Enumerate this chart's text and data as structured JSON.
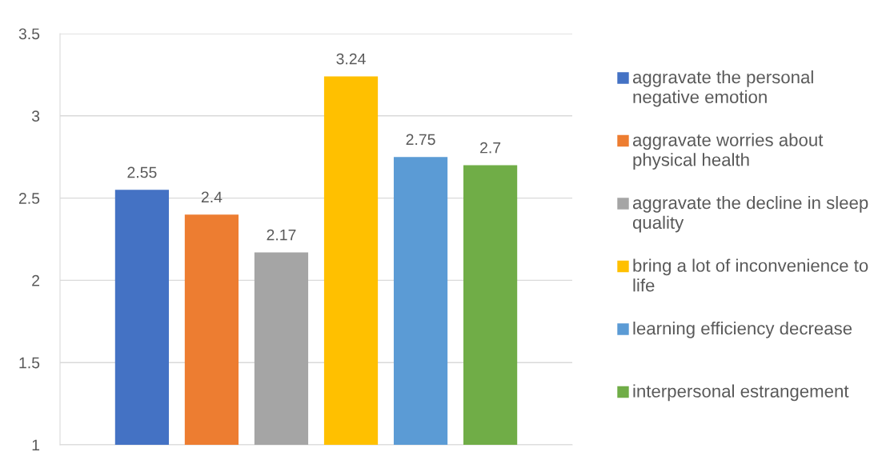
{
  "chart_data": {
    "type": "bar",
    "categories": [
      null
    ],
    "series": [
      {
        "name": "aggravate the personal negative emotion",
        "color": "#4472c4",
        "values": [
          2.55
        ]
      },
      {
        "name": "aggravate worries about physical health",
        "color": "#ed7d31",
        "values": [
          2.4
        ]
      },
      {
        "name": "aggravate the decline in sleep quality",
        "color": "#a5a5a5",
        "values": [
          2.17
        ]
      },
      {
        "name": "bring a lot of inconvenience to life",
        "color": "#ffc000",
        "values": [
          3.24
        ]
      },
      {
        "name": "learning efficiency decrease",
        "color": "#5b9bd5",
        "values": [
          2.75
        ]
      },
      {
        "name": "interpersonal estrangement",
        "color": "#70ad47",
        "values": [
          2.7
        ]
      }
    ],
    "ylim": [
      1,
      3.5
    ],
    "yticks": [
      1,
      1.5,
      2,
      2.5,
      3,
      3.5
    ],
    "grid": "y",
    "legend": "right",
    "data_labels": true
  }
}
